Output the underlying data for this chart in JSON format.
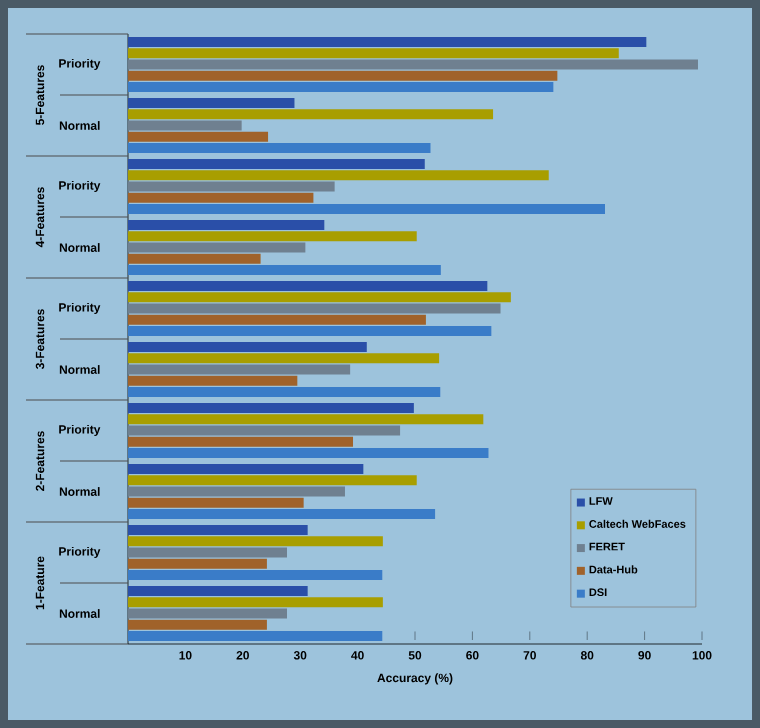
{
  "chart_data": {
    "type": "bar",
    "orientation": "horizontal",
    "xlabel": "Accuracy (%)",
    "categories": [
      "Priority",
      "Normal",
      "Priority",
      "Normal",
      "Priority",
      "Normal",
      "Priority",
      "Normal",
      "Priority",
      "Normal"
    ],
    "annotations": [
      "5-Features",
      "4-Features",
      "3-Features",
      "2-Features",
      "1-Feature"
    ],
    "xlim": [
      0,
      100
    ],
    "xticks": [
      10,
      20,
      30,
      40,
      50,
      60,
      70,
      80,
      90,
      100
    ],
    "legend": "bottom right",
    "grid": false,
    "series": [
      {
        "name": "LFW",
        "color": "#2a4fa8",
        "values": [
          90.3,
          29,
          51.7,
          34.2,
          62.6,
          41.6,
          49.8,
          41,
          31.3,
          31.3
        ]
      },
      {
        "name": "Caltech WebFaces",
        "color": "#a89e00",
        "values": [
          85.5,
          63.6,
          73.3,
          50.3,
          66.7,
          54.2,
          61.9,
          50.3,
          44.4,
          44.4
        ]
      },
      {
        "name": "FERET",
        "color": "#6f8090",
        "values": [
          99.3,
          19.8,
          36,
          30.9,
          64.9,
          38.7,
          47.4,
          37.8,
          27.7,
          27.7
        ]
      },
      {
        "name": "Data-Hub",
        "color": "#a0622a",
        "values": [
          74.8,
          24.4,
          32.3,
          23.1,
          51.9,
          29.5,
          39.2,
          30.6,
          24.2,
          24.2
        ]
      },
      {
        "name": "DSI",
        "color": "#3a7cc8",
        "values": [
          74.1,
          52.7,
          83.1,
          54.5,
          63.3,
          54.4,
          62.8,
          53.5,
          44.3,
          44.3
        ]
      }
    ]
  }
}
